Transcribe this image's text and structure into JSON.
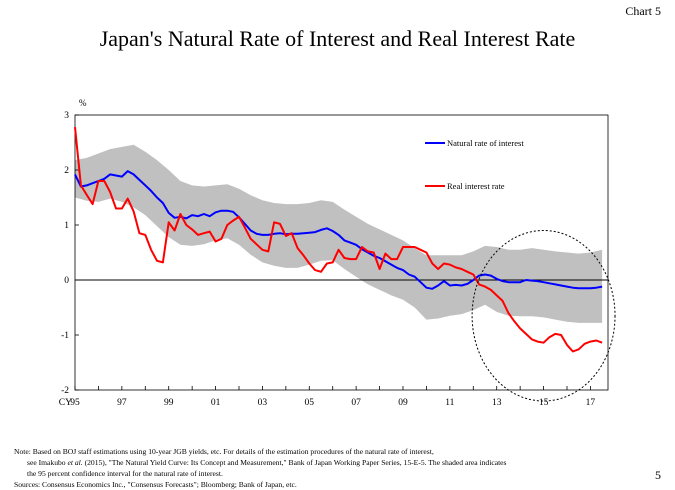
{
  "header": {
    "chart_label": "Chart 5",
    "title": "Japan's Natural Rate of Interest and Real Interest Rate"
  },
  "chart_data": {
    "type": "line",
    "ylabel": "%",
    "ylim": [
      -2,
      3
    ],
    "yticks": [
      3,
      2,
      1,
      0,
      -1,
      -2
    ],
    "xlim": [
      1995,
      2017.75
    ],
    "xticks": [
      {
        "value": 1995,
        "label": "95"
      },
      {
        "value": 1997,
        "label": "97"
      },
      {
        "value": 1999,
        "label": "99"
      },
      {
        "value": 2001,
        "label": "01"
      },
      {
        "value": 2003,
        "label": "03"
      },
      {
        "value": 2005,
        "label": "05"
      },
      {
        "value": 2007,
        "label": "07"
      },
      {
        "value": 2009,
        "label": "09"
      },
      {
        "value": 2011,
        "label": "11"
      },
      {
        "value": 2013,
        "label": "13"
      },
      {
        "value": 2015,
        "label": "15"
      },
      {
        "value": 2017,
        "label": "17"
      }
    ],
    "x_prefix": "CY",
    "series": [
      {
        "name": "Natural rate of interest",
        "color": "#0000FF",
        "points": [
          [
            1995.0,
            1.92
          ],
          [
            1995.25,
            1.7
          ],
          [
            1995.5,
            1.72
          ],
          [
            1995.75,
            1.76
          ],
          [
            1996.0,
            1.8
          ],
          [
            1996.25,
            1.84
          ],
          [
            1996.5,
            1.92
          ],
          [
            1996.75,
            1.9
          ],
          [
            1997.0,
            1.88
          ],
          [
            1997.25,
            1.98
          ],
          [
            1997.5,
            1.92
          ],
          [
            1997.75,
            1.82
          ],
          [
            1998.0,
            1.72
          ],
          [
            1998.25,
            1.62
          ],
          [
            1998.5,
            1.5
          ],
          [
            1998.75,
            1.4
          ],
          [
            1999.0,
            1.22
          ],
          [
            1999.25,
            1.13
          ],
          [
            1999.5,
            1.15
          ],
          [
            1999.75,
            1.12
          ],
          [
            2000.0,
            1.18
          ],
          [
            2000.25,
            1.16
          ],
          [
            2000.5,
            1.2
          ],
          [
            2000.75,
            1.16
          ],
          [
            2001.0,
            1.23
          ],
          [
            2001.25,
            1.26
          ],
          [
            2001.5,
            1.26
          ],
          [
            2001.75,
            1.24
          ],
          [
            2002.0,
            1.14
          ],
          [
            2002.25,
            1.02
          ],
          [
            2002.5,
            0.9
          ],
          [
            2002.75,
            0.84
          ],
          [
            2003.0,
            0.82
          ],
          [
            2003.25,
            0.82
          ],
          [
            2003.5,
            0.84
          ],
          [
            2003.75,
            0.85
          ],
          [
            2004.0,
            0.83
          ],
          [
            2004.25,
            0.84
          ],
          [
            2004.5,
            0.84
          ],
          [
            2004.75,
            0.85
          ],
          [
            2005.0,
            0.86
          ],
          [
            2005.25,
            0.87
          ],
          [
            2005.5,
            0.91
          ],
          [
            2005.75,
            0.94
          ],
          [
            2006.0,
            0.89
          ],
          [
            2006.25,
            0.82
          ],
          [
            2006.5,
            0.72
          ],
          [
            2006.75,
            0.68
          ],
          [
            2007.0,
            0.64
          ],
          [
            2007.25,
            0.56
          ],
          [
            2007.5,
            0.5
          ],
          [
            2007.75,
            0.44
          ],
          [
            2008.0,
            0.4
          ],
          [
            2008.25,
            0.34
          ],
          [
            2008.5,
            0.28
          ],
          [
            2008.75,
            0.22
          ],
          [
            2009.0,
            0.18
          ],
          [
            2009.25,
            0.1
          ],
          [
            2009.5,
            0.06
          ],
          [
            2009.75,
            -0.04
          ],
          [
            2010.0,
            -0.14
          ],
          [
            2010.25,
            -0.16
          ],
          [
            2010.5,
            -0.1
          ],
          [
            2010.75,
            -0.02
          ],
          [
            2011.0,
            -0.1
          ],
          [
            2011.25,
            -0.09
          ],
          [
            2011.5,
            -0.1
          ],
          [
            2011.75,
            -0.07
          ],
          [
            2012.0,
            0.0
          ],
          [
            2012.25,
            0.08
          ],
          [
            2012.5,
            0.1
          ],
          [
            2012.75,
            0.08
          ],
          [
            2013.0,
            0.02
          ],
          [
            2013.25,
            -0.02
          ],
          [
            2013.5,
            -0.04
          ],
          [
            2013.75,
            -0.04
          ],
          [
            2014.0,
            -0.04
          ],
          [
            2014.25,
            0.0
          ],
          [
            2014.5,
            -0.01
          ],
          [
            2014.75,
            -0.02
          ],
          [
            2015.0,
            -0.04
          ],
          [
            2015.25,
            -0.06
          ],
          [
            2015.5,
            -0.08
          ],
          [
            2015.75,
            -0.1
          ],
          [
            2016.0,
            -0.12
          ],
          [
            2016.25,
            -0.14
          ],
          [
            2016.5,
            -0.15
          ],
          [
            2016.75,
            -0.15
          ],
          [
            2017.0,
            -0.15
          ],
          [
            2017.25,
            -0.14
          ],
          [
            2017.5,
            -0.12
          ]
        ]
      },
      {
        "name": "Real interest rate",
        "color": "#FF0000",
        "points": [
          [
            1995.0,
            2.78
          ],
          [
            1995.25,
            1.72
          ],
          [
            1995.5,
            1.55
          ],
          [
            1995.75,
            1.38
          ],
          [
            1996.0,
            1.8
          ],
          [
            1996.25,
            1.8
          ],
          [
            1996.5,
            1.6
          ],
          [
            1996.75,
            1.3
          ],
          [
            1997.0,
            1.3
          ],
          [
            1997.25,
            1.48
          ],
          [
            1997.5,
            1.25
          ],
          [
            1997.75,
            0.85
          ],
          [
            1998.0,
            0.82
          ],
          [
            1998.25,
            0.55
          ],
          [
            1998.5,
            0.35
          ],
          [
            1998.75,
            0.32
          ],
          [
            1999.0,
            1.05
          ],
          [
            1999.25,
            0.9
          ],
          [
            1999.5,
            1.2
          ],
          [
            1999.75,
            1.0
          ],
          [
            2000.0,
            0.92
          ],
          [
            2000.25,
            0.82
          ],
          [
            2000.5,
            0.85
          ],
          [
            2000.75,
            0.88
          ],
          [
            2001.0,
            0.7
          ],
          [
            2001.25,
            0.75
          ],
          [
            2001.5,
            1.0
          ],
          [
            2001.75,
            1.08
          ],
          [
            2002.0,
            1.15
          ],
          [
            2002.25,
            0.95
          ],
          [
            2002.5,
            0.75
          ],
          [
            2002.75,
            0.65
          ],
          [
            2003.0,
            0.55
          ],
          [
            2003.25,
            0.52
          ],
          [
            2003.5,
            1.05
          ],
          [
            2003.75,
            1.02
          ],
          [
            2004.0,
            0.8
          ],
          [
            2004.25,
            0.85
          ],
          [
            2004.5,
            0.58
          ],
          [
            2004.75,
            0.45
          ],
          [
            2005.0,
            0.3
          ],
          [
            2005.25,
            0.18
          ],
          [
            2005.5,
            0.15
          ],
          [
            2005.75,
            0.3
          ],
          [
            2006.0,
            0.32
          ],
          [
            2006.25,
            0.55
          ],
          [
            2006.5,
            0.4
          ],
          [
            2006.75,
            0.38
          ],
          [
            2007.0,
            0.38
          ],
          [
            2007.25,
            0.6
          ],
          [
            2007.5,
            0.52
          ],
          [
            2007.75,
            0.5
          ],
          [
            2008.0,
            0.2
          ],
          [
            2008.25,
            0.48
          ],
          [
            2008.5,
            0.38
          ],
          [
            2008.75,
            0.38
          ],
          [
            2009.0,
            0.6
          ],
          [
            2009.25,
            0.6
          ],
          [
            2009.5,
            0.6
          ],
          [
            2009.75,
            0.55
          ],
          [
            2010.0,
            0.5
          ],
          [
            2010.25,
            0.3
          ],
          [
            2010.5,
            0.2
          ],
          [
            2010.75,
            0.3
          ],
          [
            2011.0,
            0.28
          ],
          [
            2011.25,
            0.23
          ],
          [
            2011.5,
            0.2
          ],
          [
            2011.75,
            0.15
          ],
          [
            2012.0,
            0.1
          ],
          [
            2012.25,
            -0.08
          ],
          [
            2012.5,
            -0.12
          ],
          [
            2012.75,
            -0.18
          ],
          [
            2013.0,
            -0.28
          ],
          [
            2013.25,
            -0.38
          ],
          [
            2013.5,
            -0.6
          ],
          [
            2013.75,
            -0.75
          ],
          [
            2014.0,
            -0.88
          ],
          [
            2014.25,
            -0.98
          ],
          [
            2014.5,
            -1.08
          ],
          [
            2014.75,
            -1.12
          ],
          [
            2015.0,
            -1.14
          ],
          [
            2015.25,
            -1.04
          ],
          [
            2015.5,
            -0.98
          ],
          [
            2015.75,
            -1.0
          ],
          [
            2016.0,
            -1.18
          ],
          [
            2016.25,
            -1.3
          ],
          [
            2016.5,
            -1.26
          ],
          [
            2016.75,
            -1.16
          ],
          [
            2017.0,
            -1.12
          ],
          [
            2017.25,
            -1.1
          ],
          [
            2017.5,
            -1.14
          ]
        ]
      }
    ],
    "confidence_band": {
      "label": "95 percent confidence interval",
      "color": "#C0C0C0",
      "upper": [
        [
          1995.0,
          2.18
        ],
        [
          1995.5,
          2.22
        ],
        [
          1996.0,
          2.3
        ],
        [
          1996.5,
          2.38
        ],
        [
          1997.0,
          2.42
        ],
        [
          1997.5,
          2.46
        ],
        [
          1998.0,
          2.33
        ],
        [
          1998.5,
          2.18
        ],
        [
          1999.0,
          2.0
        ],
        [
          1999.5,
          1.8
        ],
        [
          2000.0,
          1.72
        ],
        [
          2000.5,
          1.7
        ],
        [
          2001.0,
          1.72
        ],
        [
          2001.5,
          1.74
        ],
        [
          2002.0,
          1.66
        ],
        [
          2002.5,
          1.54
        ],
        [
          2003.0,
          1.45
        ],
        [
          2003.5,
          1.4
        ],
        [
          2004.0,
          1.38
        ],
        [
          2004.5,
          1.38
        ],
        [
          2005.0,
          1.4
        ],
        [
          2005.5,
          1.45
        ],
        [
          2006.0,
          1.42
        ],
        [
          2006.5,
          1.28
        ],
        [
          2007.0,
          1.15
        ],
        [
          2007.5,
          1.02
        ],
        [
          2008.0,
          0.92
        ],
        [
          2008.5,
          0.82
        ],
        [
          2009.0,
          0.72
        ],
        [
          2009.5,
          0.58
        ],
        [
          2010.0,
          0.45
        ],
        [
          2010.5,
          0.45
        ],
        [
          2011.0,
          0.45
        ],
        [
          2011.5,
          0.45
        ],
        [
          2012.0,
          0.52
        ],
        [
          2012.5,
          0.62
        ],
        [
          2013.0,
          0.6
        ],
        [
          2013.5,
          0.55
        ],
        [
          2014.0,
          0.55
        ],
        [
          2014.5,
          0.58
        ],
        [
          2015.0,
          0.55
        ],
        [
          2015.5,
          0.52
        ],
        [
          2016.0,
          0.5
        ],
        [
          2016.5,
          0.48
        ],
        [
          2017.0,
          0.5
        ],
        [
          2017.5,
          0.55
        ]
      ],
      "lower": [
        [
          1995.0,
          1.5
        ],
        [
          1995.5,
          1.44
        ],
        [
          1996.0,
          1.42
        ],
        [
          1996.5,
          1.48
        ],
        [
          1997.0,
          1.42
        ],
        [
          1997.5,
          1.32
        ],
        [
          1998.0,
          1.18
        ],
        [
          1998.5,
          0.98
        ],
        [
          1999.0,
          0.78
        ],
        [
          1999.5,
          0.64
        ],
        [
          2000.0,
          0.62
        ],
        [
          2000.5,
          0.65
        ],
        [
          2001.0,
          0.72
        ],
        [
          2001.5,
          0.76
        ],
        [
          2002.0,
          0.64
        ],
        [
          2002.5,
          0.46
        ],
        [
          2003.0,
          0.32
        ],
        [
          2003.5,
          0.26
        ],
        [
          2004.0,
          0.22
        ],
        [
          2004.5,
          0.22
        ],
        [
          2005.0,
          0.28
        ],
        [
          2005.5,
          0.35
        ],
        [
          2006.0,
          0.36
        ],
        [
          2006.5,
          0.2
        ],
        [
          2007.0,
          0.06
        ],
        [
          2007.5,
          -0.08
        ],
        [
          2008.0,
          -0.18
        ],
        [
          2008.5,
          -0.28
        ],
        [
          2009.0,
          -0.36
        ],
        [
          2009.5,
          -0.5
        ],
        [
          2010.0,
          -0.72
        ],
        [
          2010.5,
          -0.7
        ],
        [
          2011.0,
          -0.65
        ],
        [
          2011.5,
          -0.62
        ],
        [
          2012.0,
          -0.55
        ],
        [
          2012.5,
          -0.45
        ],
        [
          2013.0,
          -0.58
        ],
        [
          2013.5,
          -0.65
        ],
        [
          2014.0,
          -0.66
        ],
        [
          2014.5,
          -0.66
        ],
        [
          2015.0,
          -0.68
        ],
        [
          2015.5,
          -0.72
        ],
        [
          2016.0,
          -0.76
        ],
        [
          2016.5,
          -0.78
        ],
        [
          2017.0,
          -0.78
        ],
        [
          2017.5,
          -0.78
        ]
      ]
    },
    "highlight": {
      "shape": "dashed-ellipse",
      "center_x": 2015.0,
      "center_y": -0.65,
      "rx_years": 3.05,
      "ry_pct": 1.55
    }
  },
  "notes": {
    "note_line1": "Note: Based on BOJ staff estimations using 10-year JGB yields, etc. For details of the estimation procedures of the natural rate of interest,",
    "note_line2_pre": "see Imakubo ",
    "note_line2_italic": "et al.",
    "note_line2_post": " (2015), \"The Natural Yield Curve: Its Concept and Measurement,\" Bank of Japan Working Paper Series, 15-E-5. The shaded area indicates",
    "note_line3": "the 95 percent confidence interval for the natural rate of interest.",
    "sources": "Sources: Consensus Economics Inc., \"Consensus Forecasts\"; Bloomberg; Bank of Japan, etc."
  },
  "page_number": "5"
}
